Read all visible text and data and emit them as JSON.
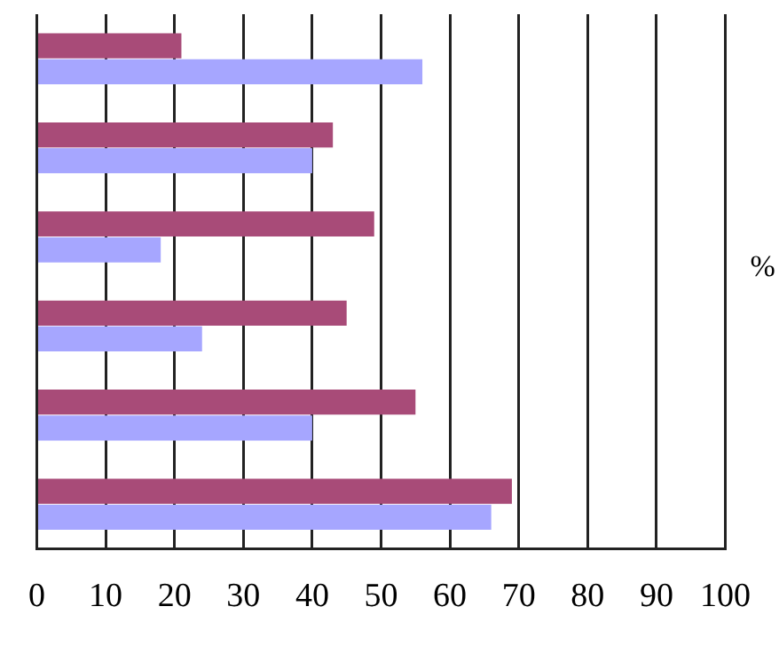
{
  "chart_data": {
    "type": "bar",
    "orientation": "horizontal",
    "categories": [
      null,
      null,
      null,
      null,
      null,
      null
    ],
    "series": [
      {
        "color": "#a84b78",
        "values": [
          21,
          43,
          49,
          45,
          55,
          69
        ]
      },
      {
        "color": "#a6a6ff",
        "values": [
          56,
          40,
          18,
          24,
          40,
          66
        ]
      }
    ],
    "xlim": [
      0,
      100
    ],
    "xticks": [
      0,
      10,
      20,
      30,
      40,
      50,
      60,
      70,
      80,
      90,
      100
    ],
    "grid": "x",
    "legend": false,
    "annotations": [
      "%"
    ]
  }
}
